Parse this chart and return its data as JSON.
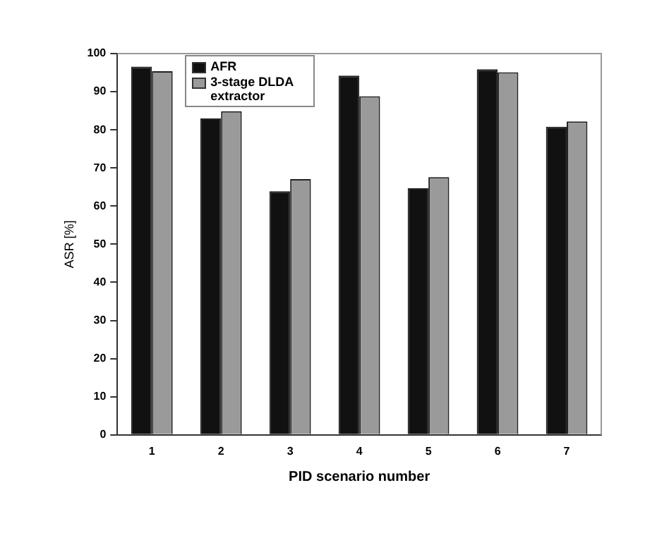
{
  "chart_data": {
    "type": "bar",
    "xlabel": "PID scenario number",
    "ylabel": "ASR [%]",
    "categories": [
      "1",
      "2",
      "3",
      "4",
      "5",
      "6",
      "7"
    ],
    "series": [
      {
        "name": "AFR",
        "color": "#111111",
        "values": [
          96.6,
          83.0,
          63.9,
          94.2,
          64.7,
          95.9,
          80.8
        ]
      },
      {
        "name": "3-stage DLDA extractor",
        "color": "#9a9a9a",
        "values": [
          95.4,
          84.9,
          67.1,
          88.8,
          67.6,
          95.1,
          82.2
        ]
      }
    ],
    "ylim": [
      0,
      100
    ],
    "yticks": [
      0,
      10,
      20,
      30,
      40,
      50,
      60,
      70,
      80,
      90,
      100
    ],
    "grid": false,
    "legend": "top left"
  }
}
